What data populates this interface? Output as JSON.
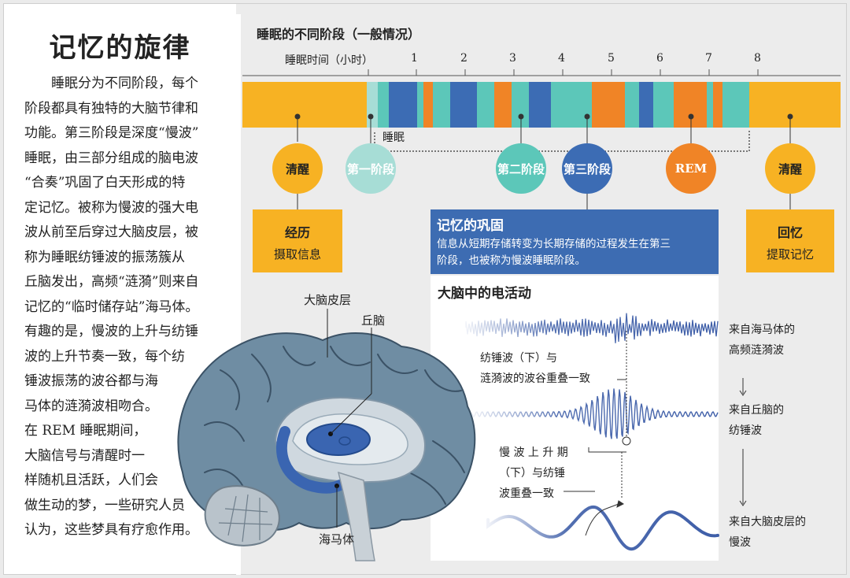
{
  "page_title": "记忆的旋律",
  "intro_lines": [
    "睡眠分为不同阶段，每个",
    "阶段都具有独特的大脑节律和",
    "功能。第三阶段是深度“慢波”",
    "睡眠，由三部分组成的脑电波",
    "“合奏”巩固了白天形成的特",
    "定记忆。被称为慢波的强大电",
    "波从前至后穿过大脑皮层，被",
    "称为睡眠纺锤波的振荡簇从",
    "丘脑发出，高频“涟漪”则来自",
    "记忆的“临时储存站”海马体。",
    "有趣的是，慢波的上升与纺锤",
    "波的上升节奏一致，每个纺",
    "锤波振荡的波谷都与海",
    "马体的涟漪波相吻合。",
    "在 REM 睡眠期间，",
    "大脑信号与清醒时一",
    "样随机且活跃，人们会",
    "做生动的梦，一些研究人员",
    "认为，这些梦具有疗愈作用。"
  ],
  "timeline": {
    "header": "睡眠的不同阶段（一般情况）",
    "axis_label": "睡眠时间（小时）",
    "ticks": [
      "1",
      "2",
      "3",
      "4",
      "5",
      "6",
      "7",
      "8"
    ],
    "sleep_label": "睡眠"
  },
  "stages": {
    "wake_left": "清醒",
    "stage1": "第一阶段",
    "stage2": "第二阶段",
    "stage3": "第三阶段",
    "rem": "REM",
    "wake_right": "清醒"
  },
  "colors": {
    "wake": "#f7b223",
    "stage1": "#a7ddd6",
    "stage2": "#5cc7b9",
    "stage3": "#3c6cb4",
    "rem": "#f08426",
    "consolidation_box": "#3d6cb2",
    "electro_bg": "#ffffff",
    "wave": "#3e5ea8"
  },
  "boxes": {
    "experience_title": "经历",
    "experience_sub": "摄取信息",
    "recall_title": "回忆",
    "recall_sub": "提取记忆",
    "consolidation_title": "记忆的巩固",
    "consolidation_body_1": "信息从短期存储转变为长期存储的过程发生在第三",
    "consolidation_body_2": "阶段，也被称为慢波睡眠阶段。"
  },
  "brain_labels": {
    "cortex": "大脑皮层",
    "thalamus": "丘脑",
    "hippocampus": "海马体"
  },
  "electro": {
    "title": "大脑中的电活动",
    "note1_line1": "纺锤波（下）与",
    "note1_line2": "涟漪波的波谷重叠一致",
    "note2_line1": "慢 波 上 升 期",
    "note2_line2": "（下）与纺锤",
    "note2_line3": "波重叠一致",
    "src_ripple_1": "来自海马体的",
    "src_ripple_2": "高频涟漪波",
    "src_spindle_1": "来自丘脑的",
    "src_spindle_2": "纺锤波",
    "src_slow_1": "来自大脑皮层的",
    "src_slow_2": "慢波"
  }
}
